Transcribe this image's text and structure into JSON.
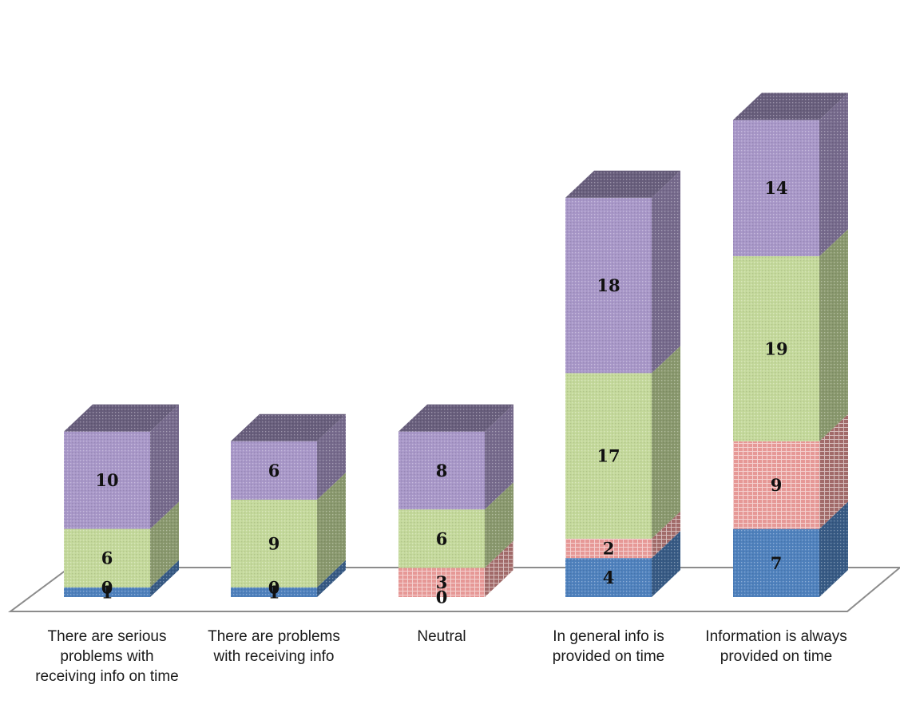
{
  "chart_data": {
    "type": "bar",
    "stacked": true,
    "style": "3d-column",
    "categories": [
      "There are serious problems with receiving info on time",
      "There are problems with receiving info",
      "Neutral",
      "In general info is provided on time",
      "Information is always provided on time"
    ],
    "series": [
      {
        "values": [
          1,
          1,
          0,
          4,
          7
        ],
        "color": "#4f81bd"
      },
      {
        "values": [
          0,
          0,
          3,
          2,
          9
        ],
        "color": "#e69896"
      },
      {
        "values": [
          6,
          9,
          6,
          17,
          19
        ],
        "color": "#c4d99b"
      },
      {
        "values": [
          10,
          6,
          8,
          18,
          14
        ],
        "color": "#a897c8"
      }
    ],
    "title": "",
    "xlabel": "",
    "ylabel": "",
    "ylim": [
      0,
      49
    ],
    "grid": false,
    "legend": "none",
    "data_labels": true
  }
}
